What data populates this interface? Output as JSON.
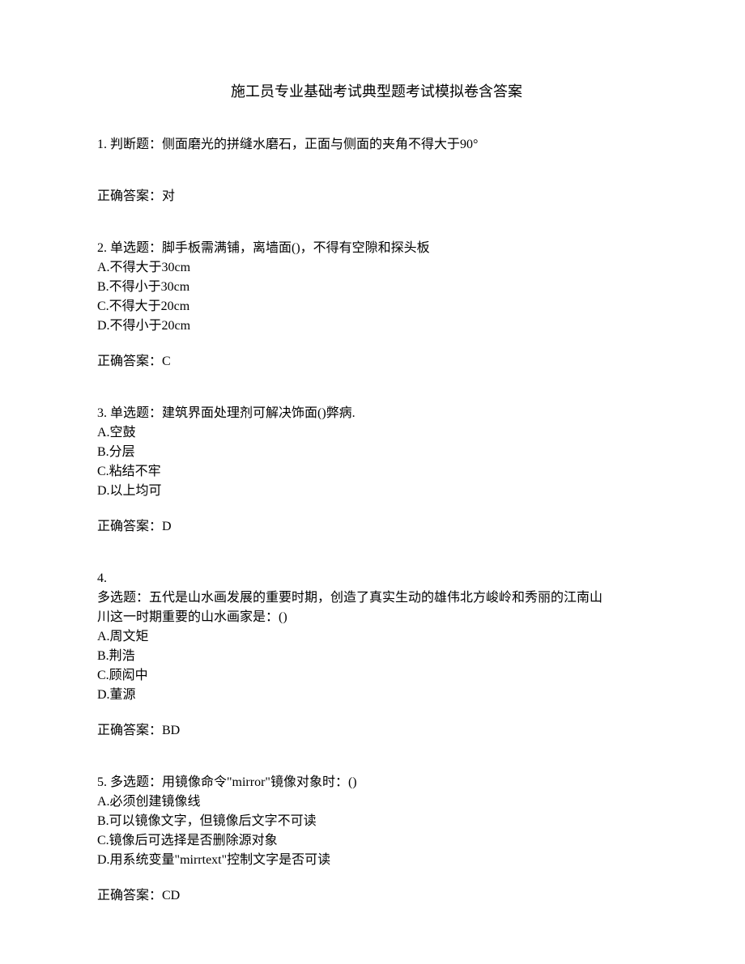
{
  "title": "施工员专业基础考试典型题考试模拟卷含答案",
  "questions": {
    "q1": {
      "text": "1. 判断题：侧面磨光的拼缝水磨石，正面与侧面的夹角不得大于90°",
      "answer": "正确答案：对"
    },
    "q2": {
      "text": "2. 单选题：脚手板需满铺，离墙面()，不得有空隙和探头板",
      "opt_a": "A.不得大于30cm",
      "opt_b": "B.不得小于30cm",
      "opt_c": "C.不得大于20cm",
      "opt_d": "D.不得小于20cm",
      "answer": "正确答案：C"
    },
    "q3": {
      "text": "3. 单选题：建筑界面处理剂可解决饰面()弊病.",
      "opt_a": "A.空鼓",
      "opt_b": "B.分层",
      "opt_c": "C.粘结不牢",
      "opt_d": "D.以上均可",
      "answer": "正确答案：D"
    },
    "q4": {
      "num": "4.",
      "text_line1": "多选题：五代是山水画发展的重要时期，创造了真实生动的雄伟北方峻岭和秀丽的江南山",
      "text_line2": "川这一时期重要的山水画家是：()",
      "opt_a": "A.周文矩",
      "opt_b": "B.荆浩",
      "opt_c": "C.顾闳中",
      "opt_d": "D.董源",
      "answer": "正确答案：BD"
    },
    "q5": {
      "text": "5. 多选题：用镜像命令\"mirror\"镜像对象时：()",
      "opt_a": "A.必须创建镜像线",
      "opt_b": "B.可以镜像文字，但镜像后文字不可读",
      "opt_c": "C.镜像后可选择是否删除源对象",
      "opt_d": "D.用系统变量\"mirrtext\"控制文字是否可读",
      "answer": "正确答案：CD"
    }
  }
}
